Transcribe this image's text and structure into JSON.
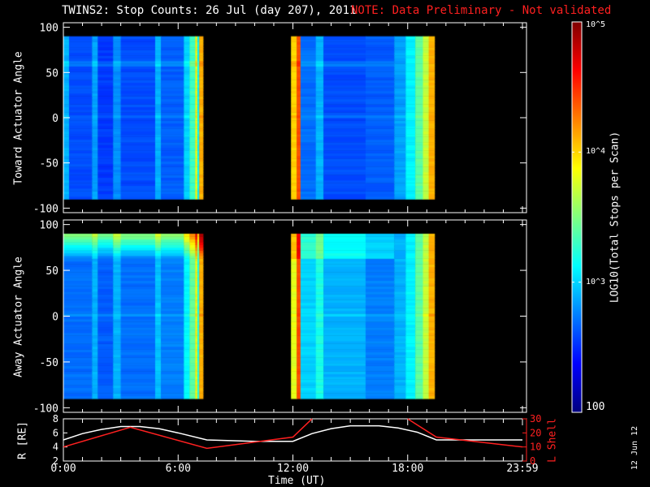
{
  "header": {
    "title": "TWINS2: Stop Counts: 26 Jul (day 207), 2011",
    "note": "NOTE: Data Preliminary - Not validated"
  },
  "footer_date": "12 Jun 12",
  "colors": {
    "note": "#ff2020",
    "lshell": "#ff2020",
    "r": "#ffffff"
  },
  "chart_data": [
    {
      "type": "heatmap",
      "title": "Toward",
      "ylabel": "Toward Actuator Angle",
      "ylim": [
        -105,
        105
      ],
      "yticks": [
        "100",
        "50",
        "0",
        "-50",
        "-100"
      ],
      "yvalues": [
        100,
        50,
        0,
        -50,
        -100
      ],
      "xlim_hours": [
        0,
        24
      ],
      "angle_range": [
        -90,
        90
      ],
      "segments_hours_log10counts": [
        [
          0,
          0.3,
          2.9
        ],
        [
          0.3,
          1.5,
          2.6
        ],
        [
          1.5,
          1.8,
          2.85
        ],
        [
          1.8,
          2.6,
          2.55
        ],
        [
          2.6,
          3.0,
          2.8
        ],
        [
          3.0,
          4.8,
          2.6
        ],
        [
          4.8,
          5.1,
          2.9
        ],
        [
          5.1,
          6.3,
          2.65
        ],
        [
          6.3,
          6.6,
          3.0
        ],
        [
          6.6,
          6.9,
          3.3
        ],
        [
          6.9,
          7.0,
          3.9
        ],
        [
          7.0,
          7.1,
          3.1
        ],
        [
          7.1,
          7.3,
          4.1
        ],
        [
          11.9,
          12.2,
          4.0
        ],
        [
          12.2,
          12.4,
          4.4
        ],
        [
          12.4,
          13.2,
          2.7
        ],
        [
          13.2,
          13.6,
          2.9
        ],
        [
          13.6,
          15.8,
          2.6
        ],
        [
          15.8,
          17.3,
          2.65
        ],
        [
          17.3,
          17.9,
          2.85
        ],
        [
          17.9,
          18.4,
          3.1
        ],
        [
          18.4,
          18.8,
          3.4
        ],
        [
          18.8,
          19.1,
          3.7
        ],
        [
          19.1,
          19.4,
          4.1
        ]
      ]
    },
    {
      "type": "heatmap",
      "title": "Away",
      "ylabel": "Away Actuator Angle",
      "ylim": [
        -105,
        105
      ],
      "yticks": [
        "100",
        "50",
        "0",
        "-50",
        "-100"
      ],
      "yvalues": [
        100,
        50,
        0,
        -50,
        -100
      ],
      "xlim_hours": [
        0,
        24
      ],
      "angle_range": [
        -90,
        90
      ],
      "segments_hours_log10counts": [
        [
          0,
          1.5,
          2.7
        ],
        [
          1.5,
          1.8,
          2.9
        ],
        [
          1.8,
          2.6,
          2.65
        ],
        [
          2.6,
          3.0,
          2.9
        ],
        [
          3.0,
          4.8,
          2.7
        ],
        [
          4.8,
          5.1,
          2.95
        ],
        [
          5.1,
          6.3,
          2.75
        ],
        [
          6.3,
          6.6,
          3.1
        ],
        [
          6.6,
          6.9,
          3.4
        ],
        [
          6.9,
          7.0,
          3.9
        ],
        [
          7.0,
          7.1,
          3.2
        ],
        [
          7.1,
          7.3,
          4.1
        ],
        [
          11.9,
          12.2,
          3.8
        ],
        [
          12.2,
          12.4,
          4.4
        ],
        [
          12.4,
          13.2,
          3.0
        ],
        [
          13.2,
          13.6,
          3.2
        ],
        [
          13.6,
          15.8,
          2.9
        ],
        [
          15.8,
          17.3,
          2.75
        ],
        [
          17.3,
          17.9,
          2.9
        ],
        [
          17.9,
          18.4,
          3.1
        ],
        [
          18.4,
          18.8,
          3.4
        ],
        [
          18.8,
          19.1,
          3.7
        ],
        [
          19.1,
          19.4,
          4.1
        ]
      ]
    },
    {
      "type": "line",
      "xlabel": "Time (UT)",
      "ylabel": "R [RE]",
      "ylabel2": "L Shell",
      "xticks": [
        "0:00",
        "6:00",
        "12:00",
        "18:00",
        "23:59"
      ],
      "xtick_hours": [
        0,
        6,
        12,
        18,
        24
      ],
      "ylim": [
        2,
        8
      ],
      "yticks": [
        "8",
        "6",
        "4",
        "2"
      ],
      "yvalues": [
        8,
        6,
        4,
        2
      ],
      "ylim2": [
        0,
        30
      ],
      "yticks2": [
        "30",
        "20",
        "10",
        "0"
      ],
      "yvalues2": [
        30,
        20,
        10,
        0
      ],
      "series": [
        {
          "name": "R",
          "axis": "left",
          "x": [
            0,
            1,
            2,
            3,
            4,
            5,
            6,
            7.5,
            10,
            12,
            13,
            14,
            15,
            16.5,
            17.5,
            18.5,
            19.5,
            24
          ],
          "y": [
            5.0,
            5.9,
            6.5,
            6.9,
            6.9,
            6.6,
            6.0,
            5.0,
            4.8,
            4.8,
            5.9,
            6.6,
            7.0,
            7.0,
            6.7,
            6.1,
            5.0,
            5.0
          ]
        },
        {
          "name": "L Shell",
          "axis": "right",
          "x": [
            0,
            3.5,
            7.5,
            12,
            13,
            null,
            18,
            19.5,
            24
          ],
          "y": [
            10,
            24,
            9,
            17,
            30,
            null,
            30,
            17,
            10
          ]
        }
      ]
    }
  ],
  "colorbar": {
    "label": "LOG10(Total Stops per Scan)",
    "ticks": [
      "10^5",
      "10^4",
      "10^3",
      "100"
    ],
    "tick_values": [
      5,
      4,
      3,
      2
    ]
  }
}
